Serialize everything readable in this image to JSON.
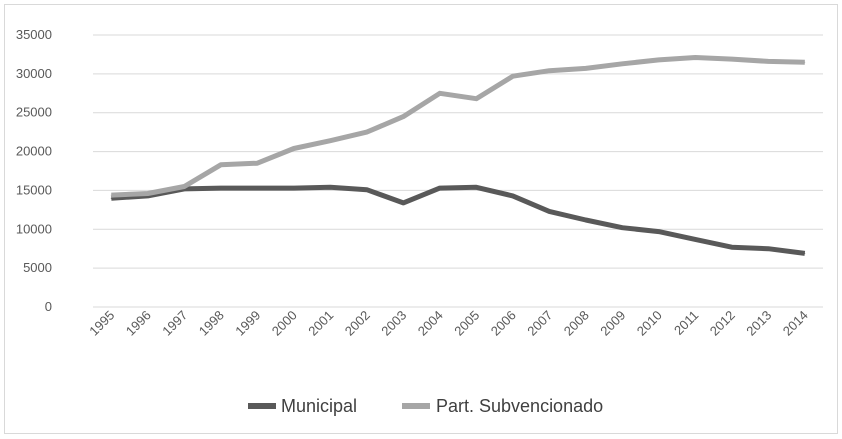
{
  "chart_data": {
    "type": "line",
    "title": "",
    "xlabel": "",
    "ylabel": "",
    "categories": [
      "1995",
      "1996",
      "1997",
      "1998",
      "1999",
      "2000",
      "2001",
      "2002",
      "2003",
      "2004",
      "2005",
      "2006",
      "2007",
      "2008",
      "2009",
      "2010",
      "2011",
      "2012",
      "2013",
      "2014"
    ],
    "ylim": [
      0,
      35000
    ],
    "yticks": [
      "0",
      "5000",
      "10000",
      "15000",
      "20000",
      "25000",
      "30000",
      "35000"
    ],
    "grid": true,
    "legend_position": "bottom",
    "series": [
      {
        "name": "Municipal",
        "color": "#595959",
        "values": [
          14000,
          14300,
          15200,
          15300,
          15300,
          15300,
          15400,
          15100,
          13400,
          15300,
          15400,
          14300,
          12300,
          11200,
          10200,
          9700,
          8700,
          7700,
          7500,
          6900
        ]
      },
      {
        "name": "Part. Subvencionado",
        "color": "#a6a6a6",
        "values": [
          14400,
          14600,
          15500,
          18300,
          18500,
          20400,
          21400,
          22500,
          24500,
          27500,
          26800,
          29700,
          30400,
          30700,
          31300,
          31800,
          32100,
          31900,
          31600,
          31500
        ]
      }
    ]
  }
}
